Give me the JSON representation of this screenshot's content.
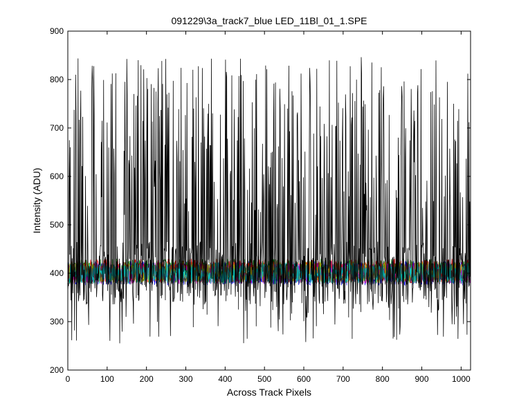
{
  "chart_data": {
    "type": "line",
    "title": "091229\\3a_track7_blue LED_11Bl_01_1.SPE",
    "xlabel": "Across Track Pixels",
    "ylabel": "Intensity (ADU)",
    "xlim": [
      0,
      1024
    ],
    "ylim": [
      200,
      900
    ],
    "xticks": [
      0,
      100,
      200,
      300,
      400,
      500,
      600,
      700,
      800,
      900,
      1000
    ],
    "yticks": [
      200,
      300,
      400,
      500,
      600,
      700,
      800,
      900
    ],
    "grid": false,
    "legend": "none",
    "n_points": 1024,
    "series": [
      {
        "color": "#000000",
        "baseline": 400,
        "noise_amplitude": 35,
        "spike_max": 847,
        "spike_min": 255,
        "style": "high-variance"
      },
      {
        "color": "#0000ff",
        "baseline": 400,
        "noise_amplitude": 25
      },
      {
        "color": "#008000",
        "baseline": 405,
        "noise_amplitude": 25
      },
      {
        "color": "#ff0000",
        "baseline": 405,
        "noise_amplitude": 25
      },
      {
        "color": "#bf00bf",
        "baseline": 400,
        "noise_amplitude": 22
      },
      {
        "color": "#bfbf00",
        "baseline": 402,
        "noise_amplitude": 22
      },
      {
        "color": "#404040",
        "baseline": 398,
        "noise_amplitude": 22
      },
      {
        "color": "#00bfbf",
        "baseline": 400,
        "noise_amplitude": 22
      }
    ]
  }
}
